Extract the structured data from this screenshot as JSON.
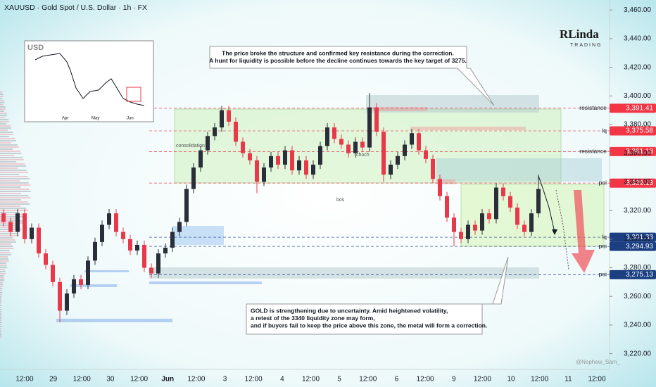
{
  "chart_data": {
    "type": "candlestick",
    "title": "XAUUSD · Gold Spot / U.S. Dollar · 1h · FX",
    "up_color": "#2a2e39",
    "down_color": "#e8394a",
    "open": [
      3318,
      3312,
      3305,
      3318,
      3300,
      3308,
      3290,
      3282,
      3270,
      3250,
      3262,
      3272,
      3268,
      3285,
      3298,
      3310,
      3318,
      3305,
      3300,
      3292,
      3296,
      3280,
      3276,
      3290,
      3294,
      3305,
      3312,
      3335,
      3350,
      3362,
      3372,
      3378,
      3390,
      3382,
      3368,
      3360,
      3355,
      3340,
      3350,
      3358,
      3352,
      3362,
      3348,
      3355,
      3345,
      3352,
      3365,
      3378,
      3370,
      3366,
      3360,
      3368,
      3364,
      3392,
      3375,
      3345,
      3352,
      3358,
      3366,
      3374,
      3362,
      3356,
      3342,
      3330,
      3315,
      3305,
      3300,
      3310,
      3306,
      3318,
      3314,
      3336,
      3330,
      3322,
      3310,
      3305,
      3318
    ],
    "high": [
      3321,
      3315,
      3321,
      3321,
      3311,
      3311,
      3293,
      3285,
      3273,
      3265,
      3275,
      3275,
      3288,
      3301,
      3313,
      3321,
      3321,
      3308,
      3303,
      3299,
      3299,
      3283,
      3293,
      3297,
      3308,
      3315,
      3338,
      3353,
      3365,
      3375,
      3381,
      3393,
      3393,
      3385,
      3371,
      3363,
      3358,
      3353,
      3361,
      3361,
      3365,
      3365,
      3358,
      3358,
      3355,
      3368,
      3381,
      3381,
      3373,
      3369,
      3371,
      3371,
      3402,
      3395,
      3378,
      3355,
      3361,
      3369,
      3377,
      3377,
      3365,
      3359,
      3345,
      3333,
      3318,
      3308,
      3313,
      3313,
      3321,
      3321,
      3339,
      3339,
      3333,
      3325,
      3313,
      3321,
      3345
    ],
    "low": [
      3309,
      3302,
      3302,
      3297,
      3297,
      3287,
      3279,
      3267,
      3242,
      3247,
      3259,
      3265,
      3265,
      3282,
      3295,
      3307,
      3302,
      3297,
      3289,
      3289,
      3277,
      3273,
      3273,
      3287,
      3291,
      3302,
      3309,
      3332,
      3347,
      3359,
      3369,
      3375,
      3379,
      3365,
      3357,
      3352,
      3332,
      3337,
      3347,
      3349,
      3349,
      3345,
      3345,
      3342,
      3342,
      3349,
      3362,
      3367,
      3363,
      3357,
      3357,
      3361,
      3361,
      3372,
      3340,
      3342,
      3349,
      3355,
      3363,
      3359,
      3353,
      3339,
      3327,
      3312,
      3295,
      3297,
      3297,
      3303,
      3303,
      3311,
      3311,
      3327,
      3319,
      3307,
      3302,
      3302,
      3315
    ],
    "close": [
      3312,
      3305,
      3318,
      3300,
      3308,
      3290,
      3282,
      3270,
      3250,
      3262,
      3272,
      3268,
      3285,
      3298,
      3310,
      3318,
      3305,
      3300,
      3292,
      3296,
      3280,
      3276,
      3290,
      3294,
      3305,
      3312,
      3335,
      3350,
      3362,
      3372,
      3378,
      3390,
      3382,
      3368,
      3360,
      3355,
      3340,
      3350,
      3358,
      3352,
      3362,
      3348,
      3355,
      3345,
      3352,
      3365,
      3378,
      3370,
      3366,
      3360,
      3368,
      3364,
      3392,
      3375,
      3345,
      3352,
      3358,
      3366,
      3374,
      3362,
      3356,
      3342,
      3330,
      3315,
      3305,
      3300,
      3310,
      3306,
      3318,
      3314,
      3336,
      3330,
      3322,
      3310,
      3305,
      3318,
      3335
    ],
    "ylim": [
      3209,
      3467
    ],
    "yticks": [
      {
        "value": 3220,
        "label": "3,220.00"
      },
      {
        "value": 3240,
        "label": "3,240.00"
      },
      {
        "value": 3260,
        "label": "3,260.00"
      },
      {
        "value": 3280,
        "label": "3,280.00"
      },
      {
        "value": 3300,
        "label": "3,300.00"
      },
      {
        "value": 3320,
        "label": "3,320.00"
      },
      {
        "value": 3340,
        "label": "3,340.00"
      },
      {
        "value": 3360,
        "label": "3,360.00"
      },
      {
        "value": 3380,
        "label": "3,380.00"
      },
      {
        "value": 3400,
        "label": "3,400.00"
      },
      {
        "value": 3420,
        "label": "3,420.00"
      },
      {
        "value": 3440,
        "label": "3,440.00"
      },
      {
        "value": 3460,
        "label": "3,460.00"
      }
    ],
    "xticks": [
      "12:00",
      "29",
      "12:00",
      "30",
      "12:00",
      "Jun",
      "12:00",
      "3",
      "12:00",
      "4",
      "12:00",
      "5",
      "12:00",
      "6",
      "12:00",
      "9",
      "12:00",
      "10",
      "12:00",
      "11",
      "12:00"
    ],
    "levels": [
      {
        "name": "resistance",
        "value": 3391.41,
        "label": "3,391.41",
        "color": "#f23645"
      },
      {
        "name": "lq",
        "value": 3375.58,
        "label": "3,375.58",
        "color": "#f23645"
      },
      {
        "name": "resistance",
        "value": 3361.13,
        "label": "3,361.13",
        "color": "#f23645"
      },
      {
        "name": "poi",
        "value": 3339.13,
        "label": "3,339.13",
        "color": "#f23645"
      },
      {
        "name": "lq",
        "value": 3301.33,
        "label": "3,301.33",
        "color": "#1c3f82"
      },
      {
        "name": "poi",
        "value": 3294.93,
        "label": "3,294.93",
        "color": "#1c3f82"
      },
      {
        "name": "poi",
        "value": 3275.13,
        "label": "3,275.13",
        "color": "#1c3f82"
      }
    ],
    "annotations": [
      [
        "The price broke the structure and confirmed key resistance during the correction.",
        "A hunt for liquidity is possible before the decline continues towards the key target of 3275."
      ],
      [
        "GOLD is strengthening due to uncertainty. Amid heightened volatility,",
        "a retest of the 3340 liquidity zone may form,",
        "and if buyers fail to keep the price above this zone, the metal will form a correction."
      ]
    ],
    "zone_labels": [
      "consolidation",
      "choch",
      "bos"
    ],
    "inset": {
      "title": "USD",
      "months": [
        "Apr",
        "May",
        "Jun"
      ]
    },
    "logo": [
      "RLinda",
      "TRADING"
    ],
    "watermark": "@Nephew_Sam_"
  }
}
